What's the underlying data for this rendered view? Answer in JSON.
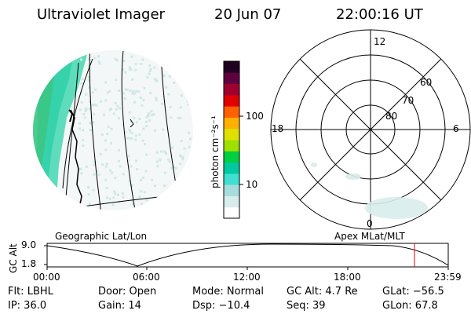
{
  "header": {
    "instrument": "Ultraviolet Imager",
    "date": "20 Jun 07",
    "time": "22:00:16 UT"
  },
  "colorbar": {
    "unit_label": "photon cm⁻²s⁻¹",
    "ticks": [
      "100",
      "10"
    ],
    "colors": [
      "#ffffff",
      "#d8ecec",
      "#a8dcdc",
      "#40e0d0",
      "#00c8a0",
      "#00d040",
      "#a0e000",
      "#e0e000",
      "#ffb000",
      "#ff6000",
      "#e00000",
      "#a00030",
      "#600040",
      "#200020"
    ]
  },
  "polar_plot": {
    "mlt_labels": {
      "top": "12",
      "left": "18",
      "right": "6",
      "bottom": "0"
    },
    "lat_labels": [
      "60",
      "70",
      "80"
    ]
  },
  "panel_labels": {
    "left": "Geographic Lat/Lon",
    "right": "Apex MLat/MLT"
  },
  "altitude_chart": {
    "ylabel": "GC Alt",
    "yticks": [
      "9.0",
      "1.8"
    ],
    "xticks": [
      "00:00",
      "06:00",
      "12:00",
      "18:00",
      "23:59"
    ],
    "marker_color": "#e00000",
    "marker_time": "22:00"
  },
  "info": {
    "flt": "Flt: LBHL",
    "ip": "IP: 36.0",
    "door": "Door: Open",
    "gain": "Gain: 14",
    "mode": "Mode: Normal",
    "dsp": "Dsp:  −10.4",
    "gcalt": "GC Alt: 4.7 Re",
    "seq": "Seq: 39",
    "glat": "GLat: −56.5",
    "glon": "GLon:  67.8"
  }
}
